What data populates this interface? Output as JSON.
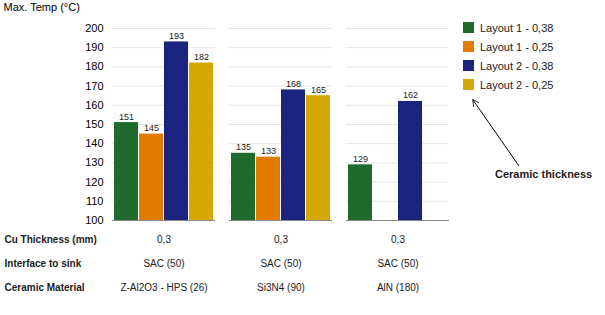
{
  "chart_data": {
    "type": "bar",
    "categories": [
      "Z-Al2O3 - HPS (26)",
      "Si3N4 (90)",
      "AlN (180)"
    ],
    "series": [
      {
        "name": "Layout 1 - 0,38",
        "color": "#1f6b2e",
        "values": [
          151,
          135,
          129
        ]
      },
      {
        "name": "Layout 1 - 0,25",
        "color": "#e07b00",
        "values": [
          145,
          133,
          null
        ]
      },
      {
        "name": "Layout 2 - 0,38",
        "color": "#1a237e",
        "values": [
          193,
          168,
          162
        ]
      },
      {
        "name": "Layout 2 - 0,25",
        "color": "#d4a800",
        "values": [
          182,
          165,
          null
        ]
      }
    ],
    "ylabel": "Max. Temp (°C)",
    "xlabel": "Ceramic Material",
    "ylim": [
      100,
      200
    ],
    "yticks": [
      100,
      110,
      120,
      130,
      140,
      150,
      160,
      170,
      180,
      190,
      200
    ],
    "grid": true,
    "data_labels": true,
    "legend": "upper right",
    "annotations": [
      "Ceramic thickness"
    ],
    "table": [
      {
        "label": "Cu Thickness (mm)",
        "cells": [
          "0,3",
          "0,3",
          "0,3"
        ]
      },
      {
        "label": "Interface to sink",
        "cells": [
          "SAC (50)",
          "SAC (50)",
          "SAC (50)"
        ]
      }
    ]
  }
}
